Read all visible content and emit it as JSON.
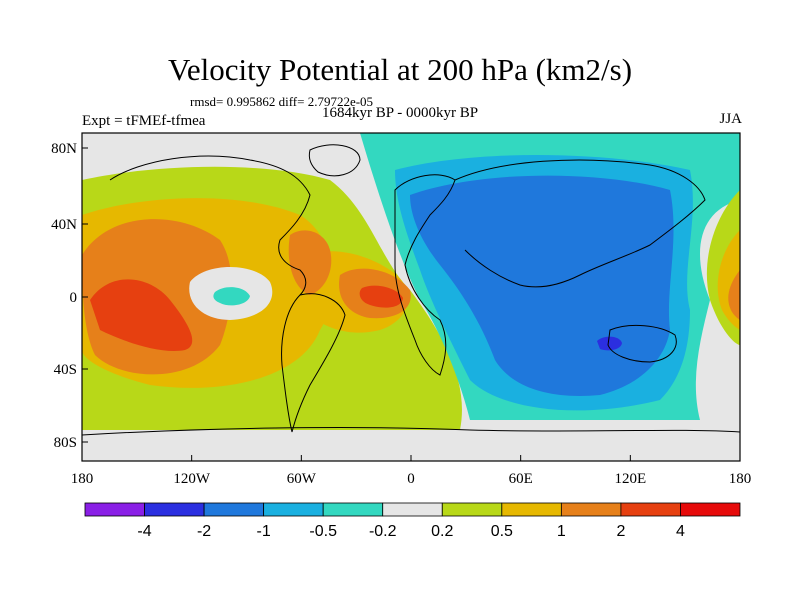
{
  "title": "Velocity Potential at 200 hPa (km2/s)",
  "stats": "rmsd= 0.995862 diff= 2.79722e-05",
  "experiment": "Expt = tFMEf-tfmea",
  "period": "1684kyr BP - 0000kyr BP",
  "season": "JJA",
  "lon_ticks": [
    "180",
    "120W",
    "60W",
    "0",
    "60E",
    "120E",
    "180"
  ],
  "lat_ticks": [
    "80N",
    "40N",
    "0",
    "40S",
    "80S"
  ],
  "colorbar": {
    "colors": [
      "#8a1fe6",
      "#2b2fe0",
      "#1f78dc",
      "#1ab0e0",
      "#33d8c0",
      "#e6e6e6",
      "#b8d818",
      "#e6b800",
      "#e6801a",
      "#e64010",
      "#e60a0a"
    ],
    "labels": [
      "-4",
      "-2",
      "-1",
      "-0.5",
      "-0.2",
      "0.2",
      "0.5",
      "1",
      "2",
      "4"
    ]
  }
}
